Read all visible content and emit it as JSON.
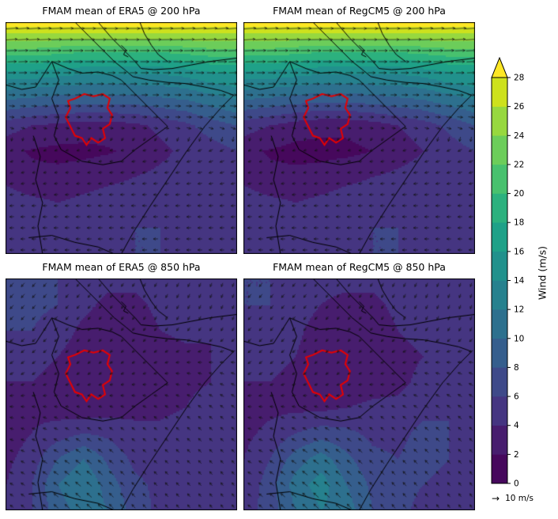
{
  "chart_data": {
    "type": "heatmap",
    "subtype": "map_contourf_with_quiver",
    "units": "m/s",
    "colormap": "viridis",
    "panels": [
      {
        "id": "era5_200",
        "title": "FMAM mean of ERA5 @ 200 hPa",
        "model": "ERA5",
        "level_hPa": 200,
        "speed_grid": [
          [
            29,
            29,
            29,
            29,
            29,
            29,
            29,
            29,
            29,
            29
          ],
          [
            22,
            22,
            21.5,
            21,
            21,
            21,
            21,
            21.5,
            22,
            22
          ],
          [
            15,
            15,
            14.5,
            14,
            14,
            14,
            14,
            14.5,
            15.5,
            16
          ],
          [
            10,
            9.5,
            9,
            9,
            9,
            9,
            9.5,
            10,
            11,
            12
          ],
          [
            5,
            4,
            3.5,
            3,
            3,
            3.5,
            4.5,
            5.5,
            7,
            8
          ],
          [
            2.5,
            1.8,
            1.5,
            1.5,
            1.8,
            2.5,
            3.5,
            4.5,
            5,
            6
          ],
          [
            3.5,
            2.5,
            2.5,
            3,
            3.5,
            4,
            4.5,
            5,
            5,
            5
          ],
          [
            5,
            4.5,
            4,
            4.5,
            5,
            5,
            5,
            5,
            5,
            5
          ],
          [
            5,
            5,
            5,
            5,
            5.5,
            6,
            6,
            5.5,
            5,
            5
          ],
          [
            5,
            5,
            5.5,
            6,
            6,
            6,
            6,
            5.5,
            5,
            5
          ]
        ],
        "dir_grid_deg": [
          [
            5,
            3,
            0,
            0,
            3,
            5
          ],
          [
            2,
            0,
            0,
            0,
            0,
            2
          ],
          [
            355,
            358,
            0,
            0,
            358,
            355
          ],
          [
            200,
            195,
            190,
            190,
            195,
            200
          ],
          [
            185,
            182,
            180,
            180,
            182,
            185
          ],
          [
            178,
            180,
            182,
            182,
            180,
            178
          ]
        ]
      },
      {
        "id": "regcm5_200",
        "title": "FMAM mean of RegCM5 @ 200 hPa",
        "model": "RegCM5",
        "level_hPa": 200,
        "speed_grid": [
          [
            29,
            29,
            29,
            29,
            29,
            29,
            29,
            29,
            29,
            29
          ],
          [
            22,
            22,
            21.5,
            21,
            21,
            21,
            21,
            21.5,
            22,
            22
          ],
          [
            15,
            15,
            14.5,
            14,
            14,
            14,
            14,
            14.5,
            15.5,
            16
          ],
          [
            10,
            9.5,
            9,
            8.5,
            8.5,
            9,
            9.5,
            10,
            11,
            12
          ],
          [
            5,
            4,
            3,
            2.5,
            2.5,
            3,
            4,
            5,
            6.5,
            8
          ],
          [
            2.5,
            1.8,
            1.4,
            1.4,
            1.5,
            2,
            3,
            4,
            5,
            6
          ],
          [
            3.5,
            2.5,
            2.5,
            2.8,
            3.5,
            4,
            4.5,
            5,
            5,
            5
          ],
          [
            5,
            4.5,
            4,
            4.5,
            5,
            5,
            5,
            5,
            5,
            5
          ],
          [
            5,
            5,
            5,
            5,
            5.5,
            6,
            6,
            5.5,
            5,
            5
          ],
          [
            5,
            5,
            5.5,
            6,
            6,
            6,
            6,
            5.5,
            5,
            5
          ]
        ],
        "dir_grid_deg": [
          [
            5,
            3,
            0,
            0,
            3,
            5
          ],
          [
            2,
            0,
            0,
            0,
            0,
            2
          ],
          [
            355,
            358,
            0,
            0,
            358,
            355
          ],
          [
            200,
            195,
            190,
            190,
            195,
            200
          ],
          [
            185,
            182,
            180,
            180,
            182,
            185
          ],
          [
            178,
            180,
            182,
            182,
            180,
            178
          ]
        ]
      },
      {
        "id": "era5_850",
        "title": "FMAM mean of ERA5 @ 850 hPa",
        "model": "ERA5",
        "level_hPa": 850,
        "speed_grid": [
          [
            7,
            7,
            6,
            5,
            4.5,
            4.5,
            5,
            5,
            4.5,
            4
          ],
          [
            7,
            6.5,
            6,
            4.5,
            3.5,
            3.5,
            4.5,
            5,
            4.5,
            4
          ],
          [
            6,
            6,
            5,
            3.5,
            2.5,
            3,
            4,
            4.5,
            4,
            4
          ],
          [
            5,
            5,
            4,
            3,
            2,
            2.5,
            3,
            3.5,
            4,
            4.5
          ],
          [
            4,
            4,
            3,
            2.5,
            2,
            2.5,
            3,
            3.5,
            4,
            5
          ],
          [
            3.5,
            3.5,
            3,
            2.5,
            3,
            3.5,
            3.5,
            4,
            5,
            5
          ],
          [
            3,
            4,
            5,
            6,
            5.5,
            4.5,
            4.5,
            5,
            5,
            4.5
          ],
          [
            3.5,
            5,
            8,
            10,
            7.5,
            5.5,
            5,
            5.5,
            5,
            4.5
          ],
          [
            4,
            6,
            10,
            12,
            9,
            6.5,
            5.5,
            5,
            4.5,
            4
          ],
          [
            4,
            6,
            9,
            11,
            10,
            7,
            5.5,
            4.5,
            4,
            4
          ]
        ],
        "dir_grid_deg": [
          [
            230,
            230,
            235,
            240,
            245,
            250
          ],
          [
            225,
            228,
            232,
            238,
            242,
            248
          ],
          [
            210,
            215,
            220,
            200,
            170,
            160
          ],
          [
            170,
            160,
            150,
            145,
            140,
            140
          ],
          [
            155,
            148,
            140,
            138,
            135,
            132
          ],
          [
            145,
            140,
            136,
            132,
            128,
            124
          ]
        ]
      },
      {
        "id": "regcm5_850",
        "title": "FMAM mean of RegCM5 @ 850 hPa",
        "model": "RegCM5",
        "level_hPa": 850,
        "speed_grid": [
          [
            6,
            6,
            5.5,
            4.5,
            4.5,
            4.5,
            5,
            5,
            4.5,
            4
          ],
          [
            6,
            6,
            5,
            4,
            3.5,
            3.5,
            4.5,
            5,
            4.5,
            4.5
          ],
          [
            5.5,
            5,
            4.5,
            3,
            2.5,
            3,
            4,
            4.5,
            4.5,
            5
          ],
          [
            5,
            4.5,
            4,
            2.5,
            2,
            2.5,
            3.5,
            4,
            4.5,
            5
          ],
          [
            4,
            4,
            3.5,
            2.5,
            2.5,
            3,
            3.5,
            4.5,
            5,
            5.5
          ],
          [
            3.5,
            3.5,
            3.5,
            3.5,
            4,
            4.5,
            4.5,
            5.5,
            6,
            5.5
          ],
          [
            3.5,
            4.5,
            6,
            7,
            6.5,
            5.5,
            5.5,
            6.5,
            6,
            5
          ],
          [
            4,
            6,
            9,
            11,
            8.5,
            6.5,
            6,
            7,
            6,
            5
          ],
          [
            4.5,
            7,
            11,
            13,
            10,
            7.5,
            6.5,
            6,
            5,
            4.5
          ],
          [
            5,
            7,
            10,
            12,
            11,
            8,
            6.5,
            5.5,
            4.5,
            4
          ]
        ],
        "dir_grid_deg": [
          [
            232,
            230,
            236,
            242,
            246,
            252
          ],
          [
            226,
            228,
            234,
            240,
            244,
            250
          ],
          [
            212,
            216,
            222,
            195,
            168,
            158
          ],
          [
            168,
            158,
            150,
            144,
            140,
            138
          ],
          [
            152,
            146,
            140,
            136,
            133,
            130
          ],
          [
            143,
            138,
            134,
            130,
            126,
            122
          ]
        ]
      }
    ],
    "colorbar": {
      "label": "Wind (m/s)",
      "ticks": [
        0,
        2,
        4,
        6,
        8,
        10,
        12,
        14,
        16,
        18,
        20,
        22,
        24,
        26,
        28
      ],
      "levels_min": 0,
      "levels_max": 28,
      "level_step": 2,
      "extend": "max",
      "band_colors": [
        "#46085c",
        "#471d6e",
        "#453581",
        "#3e4989",
        "#355e8d",
        "#2d708e",
        "#26818e",
        "#21918c",
        "#1fa188",
        "#2cb17e",
        "#48c16e",
        "#6ccd5a",
        "#97d83f",
        "#cde11d"
      ],
      "extend_color": "#fde725"
    },
    "quiver_key": {
      "symbol": "→",
      "label": "10 m/s",
      "reference_speed": 10
    },
    "overlays": {
      "country_border_color": "#000000",
      "study_region_outline_color": "#e80000",
      "borders_norm": [
        [
          [
            0.3,
            0.0
          ],
          [
            0.36,
            0.06
          ],
          [
            0.42,
            0.12
          ],
          [
            0.47,
            0.17
          ],
          [
            0.52,
            0.21
          ],
          [
            0.55,
            0.235
          ],
          [
            0.62,
            0.25
          ],
          [
            0.7,
            0.26
          ],
          [
            0.78,
            0.265
          ],
          [
            0.86,
            0.28
          ],
          [
            0.93,
            0.295
          ],
          [
            0.985,
            0.315
          ],
          [
            0.93,
            0.37
          ],
          [
            0.86,
            0.45
          ],
          [
            0.78,
            0.56
          ],
          [
            0.7,
            0.68
          ],
          [
            0.62,
            0.8
          ],
          [
            0.55,
            0.91
          ],
          [
            0.5,
            1.0
          ]
        ],
        [
          [
            0.4,
            0.0
          ],
          [
            0.46,
            0.07
          ],
          [
            0.52,
            0.13
          ],
          [
            0.56,
            0.17
          ],
          [
            0.585,
            0.2
          ],
          [
            0.64,
            0.205
          ],
          [
            0.72,
            0.2
          ],
          [
            0.8,
            0.185
          ],
          [
            0.88,
            0.17
          ],
          [
            1.0,
            0.155
          ]
        ],
        [
          [
            0.58,
            0.0
          ],
          [
            0.6,
            0.05
          ],
          [
            0.63,
            0.1
          ],
          [
            0.66,
            0.14
          ],
          [
            0.7,
            0.17
          ]
        ],
        [
          [
            0.2,
            0.17
          ],
          [
            0.27,
            0.2
          ],
          [
            0.33,
            0.22
          ],
          [
            0.4,
            0.215
          ],
          [
            0.46,
            0.23
          ],
          [
            0.5,
            0.25
          ]
        ],
        [
          [
            0.2,
            0.17
          ],
          [
            0.23,
            0.25
          ],
          [
            0.2,
            0.33
          ],
          [
            0.23,
            0.41
          ],
          [
            0.21,
            0.49
          ],
          [
            0.24,
            0.55
          ]
        ],
        [
          [
            0.24,
            0.55
          ],
          [
            0.33,
            0.6
          ],
          [
            0.42,
            0.615
          ],
          [
            0.5,
            0.6
          ],
          [
            0.56,
            0.55
          ],
          [
            0.63,
            0.5
          ],
          [
            0.7,
            0.45
          ],
          [
            0.63,
            0.38
          ],
          [
            0.56,
            0.31
          ],
          [
            0.5,
            0.25
          ]
        ],
        [
          [
            0.12,
            0.49
          ],
          [
            0.15,
            0.58
          ],
          [
            0.13,
            0.68
          ],
          [
            0.16,
            0.78
          ],
          [
            0.14,
            0.88
          ],
          [
            0.16,
            1.0
          ]
        ],
        [
          [
            0.1,
            0.93
          ],
          [
            0.2,
            0.92
          ],
          [
            0.3,
            0.95
          ],
          [
            0.4,
            0.97
          ],
          [
            0.47,
            1.0
          ]
        ],
        [
          [
            0.0,
            0.27
          ],
          [
            0.07,
            0.29
          ],
          [
            0.13,
            0.28
          ],
          [
            0.2,
            0.17
          ]
        ],
        [
          [
            0.5,
            0.1
          ],
          [
            0.52,
            0.12
          ],
          [
            0.51,
            0.14
          ],
          [
            0.53,
            0.15
          ]
        ]
      ],
      "study_region_norm": [
        [
          0.3,
          0.33
        ],
        [
          0.34,
          0.31
        ],
        [
          0.38,
          0.32
        ],
        [
          0.42,
          0.31
        ],
        [
          0.45,
          0.33
        ],
        [
          0.44,
          0.37
        ],
        [
          0.46,
          0.4
        ],
        [
          0.45,
          0.44
        ],
        [
          0.42,
          0.46
        ],
        [
          0.43,
          0.5
        ],
        [
          0.4,
          0.52
        ],
        [
          0.37,
          0.5
        ],
        [
          0.35,
          0.53
        ],
        [
          0.33,
          0.5
        ],
        [
          0.3,
          0.49
        ],
        [
          0.28,
          0.45
        ],
        [
          0.26,
          0.41
        ],
        [
          0.28,
          0.37
        ],
        [
          0.27,
          0.34
        ],
        [
          0.3,
          0.33
        ]
      ]
    }
  }
}
